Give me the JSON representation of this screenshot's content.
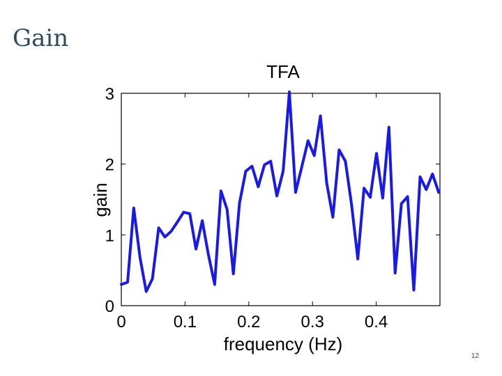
{
  "slide": {
    "title": "Gain",
    "page_number": "12"
  },
  "chart_data": {
    "type": "line",
    "title": "TFA",
    "xlabel": "frequency (Hz)",
    "ylabel": "gain",
    "xlim": [
      0,
      0.5
    ],
    "ylim": [
      0,
      3
    ],
    "xticks": [
      "0",
      "0.1",
      "0.2",
      "0.3",
      "0.4"
    ],
    "yticks": [
      "0",
      "1",
      "2",
      "3"
    ],
    "grid": false,
    "series": [
      {
        "color": "#1a1ae6",
        "x": [
          0.0,
          0.0098,
          0.0195,
          0.0293,
          0.0391,
          0.0488,
          0.0586,
          0.0684,
          0.0781,
          0.0879,
          0.0977,
          0.1074,
          0.1172,
          0.127,
          0.1367,
          0.1465,
          0.1563,
          0.166,
          0.1758,
          0.1855,
          0.1953,
          0.2051,
          0.2148,
          0.2246,
          0.2344,
          0.2441,
          0.2539,
          0.2637,
          0.2734,
          0.2832,
          0.293,
          0.3027,
          0.3125,
          0.3223,
          0.332,
          0.3418,
          0.3516,
          0.3613,
          0.3711,
          0.3809,
          0.3906,
          0.4004,
          0.4102,
          0.4199,
          0.4297,
          0.4395,
          0.4492,
          0.459,
          0.4688,
          0.4785,
          0.4883,
          0.498
        ],
        "values": [
          0.3,
          0.33,
          1.38,
          0.68,
          0.2,
          0.38,
          1.1,
          0.97,
          1.05,
          1.18,
          1.32,
          1.3,
          0.8,
          1.2,
          0.72,
          0.3,
          1.62,
          1.36,
          0.45,
          1.45,
          1.9,
          1.97,
          1.68,
          1.99,
          2.04,
          1.55,
          1.9,
          3.02,
          1.6,
          1.96,
          2.33,
          2.12,
          2.68,
          1.73,
          1.25,
          2.2,
          2.04,
          1.43,
          0.66,
          1.66,
          1.53,
          2.15,
          1.52,
          2.52,
          0.46,
          1.44,
          1.54,
          0.22,
          1.82,
          1.64,
          1.86,
          1.6
        ]
      }
    ]
  }
}
